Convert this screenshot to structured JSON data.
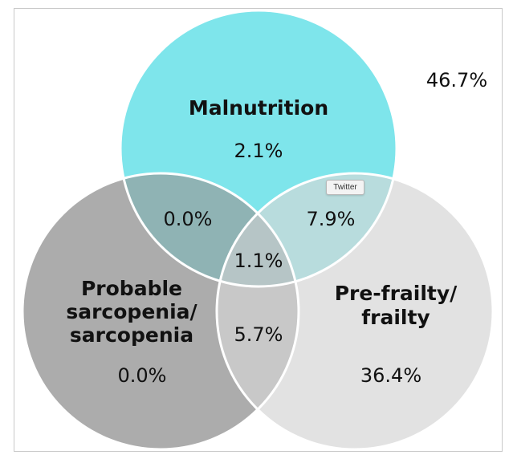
{
  "diagram": {
    "type": "venn",
    "outside_value": "46.7%",
    "sets": {
      "malnutrition": {
        "label": "Malnutrition",
        "only_value": "2.1%",
        "color": "#7ee5eb"
      },
      "sarcopenia": {
        "label_lines": [
          "Probable",
          "sarcopenia/",
          "sarcopenia"
        ],
        "only_value": "0.0%",
        "color": "#acacac"
      },
      "frailty": {
        "label_lines": [
          "Pre-frailty/",
          "frailty"
        ],
        "only_value": "36.4%",
        "color": "#e2e2e2"
      }
    },
    "intersections": {
      "malnutrition_sarcopenia": {
        "value": "0.0%",
        "color": "#8fb3b4"
      },
      "malnutrition_frailty": {
        "value": "7.9%",
        "color": "#b8dcdd"
      },
      "sarcopenia_frailty": {
        "value": "5.7%",
        "color": "#c8c8c8"
      },
      "all_three": {
        "value": "1.1%",
        "color": "#b6c5c6"
      }
    }
  },
  "tooltip": {
    "text": "Twitter"
  }
}
